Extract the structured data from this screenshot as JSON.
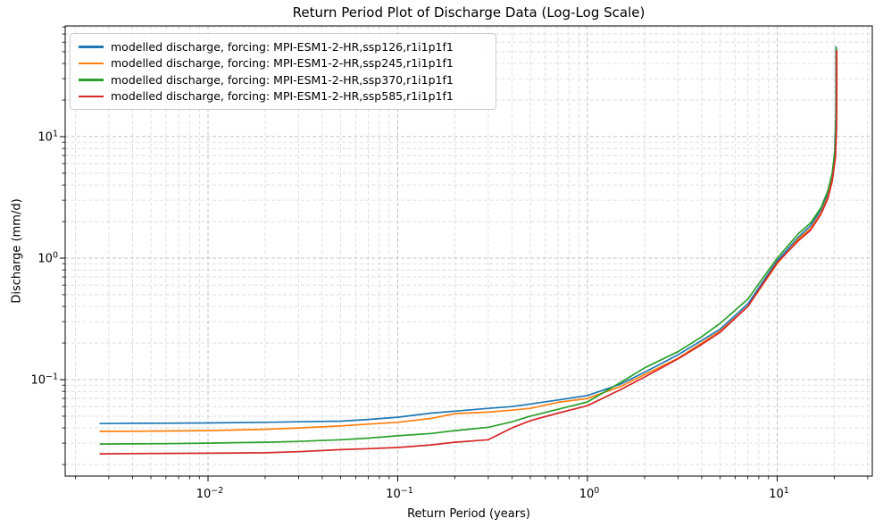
{
  "chart_data": {
    "type": "line",
    "title": "Return Period Plot of Discharge Data (Log-Log Scale)",
    "xlabel": "Return Period (years)",
    "ylabel": "Discharge (mm/d)",
    "x_scale": "log",
    "y_scale": "log",
    "xlim": [
      0.0018,
      32
    ],
    "ylim": [
      0.016,
      82
    ],
    "x_tick_exponents": [
      -2,
      -1,
      0,
      1
    ],
    "y_tick_exponents": [
      -1,
      0,
      1
    ],
    "grid": {
      "which": "both",
      "style": "dashed"
    },
    "legend_position": "upper left",
    "series": [
      {
        "scenario": "ssp126",
        "label": "modelled discharge, forcing: MPI-ESM1-2-HR,ssp126,r1i1p1f1",
        "color": "#1f77b4",
        "x": [
          0.0027,
          0.004,
          0.006,
          0.01,
          0.02,
          0.03,
          0.05,
          0.07,
          0.1,
          0.15,
          0.2,
          0.3,
          0.4,
          0.5,
          0.7,
          1,
          1.5,
          2,
          3,
          4,
          5,
          7,
          10,
          13,
          15,
          17,
          18.5,
          19.5,
          20.1,
          20.35,
          20.4,
          20.4
        ],
        "y": [
          0.0435,
          0.0437,
          0.0438,
          0.044,
          0.0445,
          0.045,
          0.0455,
          0.047,
          0.049,
          0.053,
          0.055,
          0.058,
          0.06,
          0.063,
          0.068,
          0.074,
          0.092,
          0.115,
          0.16,
          0.21,
          0.26,
          0.42,
          0.95,
          1.5,
          1.85,
          2.5,
          3.4,
          4.6,
          7.5,
          14,
          25,
          55
        ]
      },
      {
        "scenario": "ssp245",
        "label": "modelled discharge, forcing: MPI-ESM1-2-HR,ssp245,r1i1p1f1",
        "color": "#ff7f0e",
        "x": [
          0.0027,
          0.004,
          0.006,
          0.01,
          0.02,
          0.03,
          0.05,
          0.07,
          0.1,
          0.15,
          0.2,
          0.3,
          0.4,
          0.5,
          0.7,
          1,
          1.5,
          2,
          3,
          4,
          5,
          7,
          10,
          13,
          15,
          17,
          18.5,
          19.5,
          20.2,
          20.45,
          20.5,
          20.5
        ],
        "y": [
          0.0375,
          0.0376,
          0.0378,
          0.038,
          0.039,
          0.04,
          0.0415,
          0.043,
          0.0445,
          0.048,
          0.0525,
          0.054,
          0.056,
          0.058,
          0.065,
          0.07,
          0.088,
          0.11,
          0.15,
          0.2,
          0.25,
          0.4,
          0.9,
          1.45,
          1.75,
          2.35,
          3.2,
          4.4,
          7,
          13,
          24,
          53
        ]
      },
      {
        "scenario": "ssp370",
        "label": "modelled discharge, forcing: MPI-ESM1-2-HR,ssp370,r1i1p1f1",
        "color": "#2ca02c",
        "x": [
          0.0027,
          0.004,
          0.006,
          0.01,
          0.02,
          0.03,
          0.05,
          0.07,
          0.1,
          0.15,
          0.2,
          0.3,
          0.4,
          0.5,
          0.7,
          1,
          1.5,
          2,
          3,
          4,
          5,
          7,
          10,
          13,
          15,
          17,
          18.5,
          19.5,
          20.2,
          20.45,
          20.5,
          20.5
        ],
        "y": [
          0.0295,
          0.0296,
          0.0297,
          0.03,
          0.0305,
          0.031,
          0.032,
          0.033,
          0.0345,
          0.036,
          0.038,
          0.0405,
          0.045,
          0.05,
          0.057,
          0.0655,
          0.095,
          0.125,
          0.17,
          0.225,
          0.29,
          0.46,
          1.0,
          1.6,
          1.95,
          2.6,
          3.6,
          5.0,
          8,
          16,
          28,
          54
        ]
      },
      {
        "scenario": "ssp585",
        "label": "modelled discharge, forcing: MPI-ESM1-2-HR,ssp585,r1i1p1f1",
        "color": "#d62728",
        "x": [
          0.0027,
          0.004,
          0.006,
          0.01,
          0.02,
          0.03,
          0.05,
          0.07,
          0.1,
          0.15,
          0.2,
          0.3,
          0.4,
          0.5,
          0.7,
          1,
          1.5,
          2,
          3,
          4,
          5,
          7,
          10,
          13,
          15,
          17,
          18.5,
          19.5,
          20.3,
          20.55,
          20.6,
          20.6
        ],
        "y": [
          0.0245,
          0.0246,
          0.0247,
          0.0248,
          0.025,
          0.0255,
          0.0265,
          0.027,
          0.0276,
          0.029,
          0.0305,
          0.032,
          0.04,
          0.046,
          0.053,
          0.061,
          0.083,
          0.105,
          0.148,
          0.195,
          0.245,
          0.4,
          0.92,
          1.4,
          1.7,
          2.3,
          3.1,
          4.3,
          6.8,
          12,
          24,
          51
        ]
      }
    ]
  }
}
